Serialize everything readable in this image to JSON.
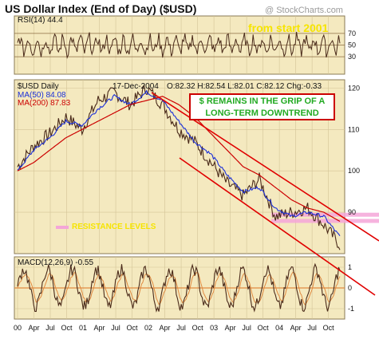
{
  "title": "US Dollar Index (End of Day) ($USD)",
  "credit": "@ StockCharts.com",
  "annotation_top": "from start 2001",
  "downtrend_box": {
    "line1": "$ REMAINS IN THE GRIP OF A",
    "line2": "LONG-TERM DOWNTREND"
  },
  "resistance_label": "RESISTANCE LEVELS",
  "rsi_panel": {
    "label": "RSI(14)",
    "value": "44.4",
    "levels": [
      "70",
      "50",
      "30"
    ]
  },
  "price_panel": {
    "symbol": "$USD Daily",
    "date": "17-Dec-2004",
    "ohlc": "O:82.32 H:82.54 L:82.01 C:82.12 Chg:-0.33",
    "ma50": "MA(50) 84.08",
    "ma200": "MA(200) 87.83",
    "y_ticks": [
      "120",
      "110",
      "100",
      "90"
    ]
  },
  "macd_panel": {
    "label": "MACD(12,26,9)",
    "value": "-0.55",
    "y_ticks": [
      "1",
      "0",
      "-1"
    ]
  },
  "x_labels": [
    "00",
    "Apr",
    "Jul",
    "Oct",
    "01",
    "Apr",
    "Jul",
    "Oct",
    "02",
    "Apr",
    "Jul",
    "Oct",
    "03",
    "Apr",
    "Jul",
    "Oct",
    "04",
    "Apr",
    "Jul",
    "Oct"
  ],
  "colors": {
    "panel_bg": "#f4e9bf",
    "price": "#4a2a1a",
    "ma50": "#1b2fd8",
    "ma200": "#cc0000",
    "channel": "#e00000",
    "resistance": "#f4a6d8",
    "annot": "#f6e400",
    "box_text": "#22aa22"
  },
  "chart_data": {
    "type": "line",
    "title": "US Dollar Index (End of Day) ($USD)",
    "x": [
      "Jan 2000",
      "Apr 2000",
      "Jul 2000",
      "Oct 2000",
      "Jan 2001",
      "Apr 2001",
      "Jul 2001",
      "Oct 2001",
      "Jan 2002",
      "Apr 2002",
      "Jul 2002",
      "Oct 2002",
      "Jan 2003",
      "Apr 2003",
      "Jul 2003",
      "Oct 2003",
      "Jan 2004",
      "Apr 2004",
      "Jul 2004",
      "Oct 2004",
      "Dec 2004"
    ],
    "ylim": [
      80,
      122
    ],
    "series": [
      {
        "name": "$USD Daily",
        "values": [
          101,
          106,
          109,
          113,
          110,
          117,
          119,
          116,
          120,
          116,
          110,
          107,
          102,
          97,
          94,
          98,
          89,
          90,
          91,
          87,
          82.1
        ]
      },
      {
        "name": "MA(50)",
        "values": [
          100,
          105,
          108,
          112,
          111,
          115,
          118,
          116,
          119,
          117,
          112,
          107,
          104,
          99,
          95,
          96,
          91,
          89,
          90,
          89,
          84.1
        ]
      },
      {
        "name": "MA(200)",
        "values": [
          100,
          102,
          105,
          108,
          110,
          112,
          114,
          116,
          117,
          118,
          116,
          113,
          109,
          105,
          101,
          99,
          96,
          93,
          91,
          90,
          87.8
        ]
      }
    ],
    "resistance_levels": [
      89.5,
      88.0
    ],
    "rsi": {
      "ylim": [
        0,
        100
      ],
      "levels": [
        70,
        50,
        30
      ],
      "last": 44.4
    },
    "macd": {
      "ylim": [
        -1.5,
        1.5
      ],
      "last": -0.55
    }
  }
}
